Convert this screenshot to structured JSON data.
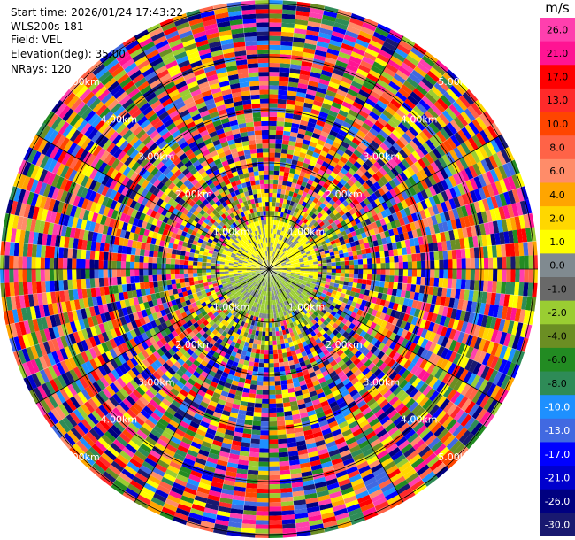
{
  "header": {
    "start_time": "Start time: 2026/01/24 17:43:22",
    "instrument": "WLS200s-181",
    "field": "Field: VEL",
    "elevation": "Elevation(deg): 35.00",
    "nrays": "NRays: 120"
  },
  "colorbar": {
    "unit": "m/s",
    "ticks": [
      "26.0",
      "21.0",
      "17.0",
      "13.0",
      "10.0",
      "8.0",
      "6.0",
      "4.0",
      "2.0",
      "1.0",
      "0.0",
      "-1.0",
      "-2.0",
      "-4.0",
      "-6.0",
      "-8.0",
      "-10.0",
      "-13.0",
      "-17.0",
      "-21.0",
      "-26.0",
      "-30.0"
    ],
    "colors": [
      "#ff3fae",
      "#ff1493",
      "#ff0000",
      "#ff2a2a",
      "#ff4500",
      "#ff6347",
      "#ff8c69",
      "#ffa500",
      "#ffd700",
      "#ffff00",
      "#808a90",
      "#696969",
      "#9acd32",
      "#6b8e23",
      "#228b22",
      "#2e8b57",
      "#1e90ff",
      "#4169e1",
      "#0000ff",
      "#0000cd",
      "#000080",
      "#191970"
    ]
  },
  "chart_data": {
    "type": "ppi",
    "field": "VEL",
    "nrays": 120,
    "elevation_deg": 35.0,
    "range_ring_labels": [
      "1.00km",
      "2.00km",
      "3.00km",
      "4.00km",
      "5.00km"
    ],
    "range_rings_km": [
      1,
      2,
      3,
      4,
      5
    ],
    "max_range_km": 5.0,
    "value_range": [
      -30,
      26
    ]
  }
}
